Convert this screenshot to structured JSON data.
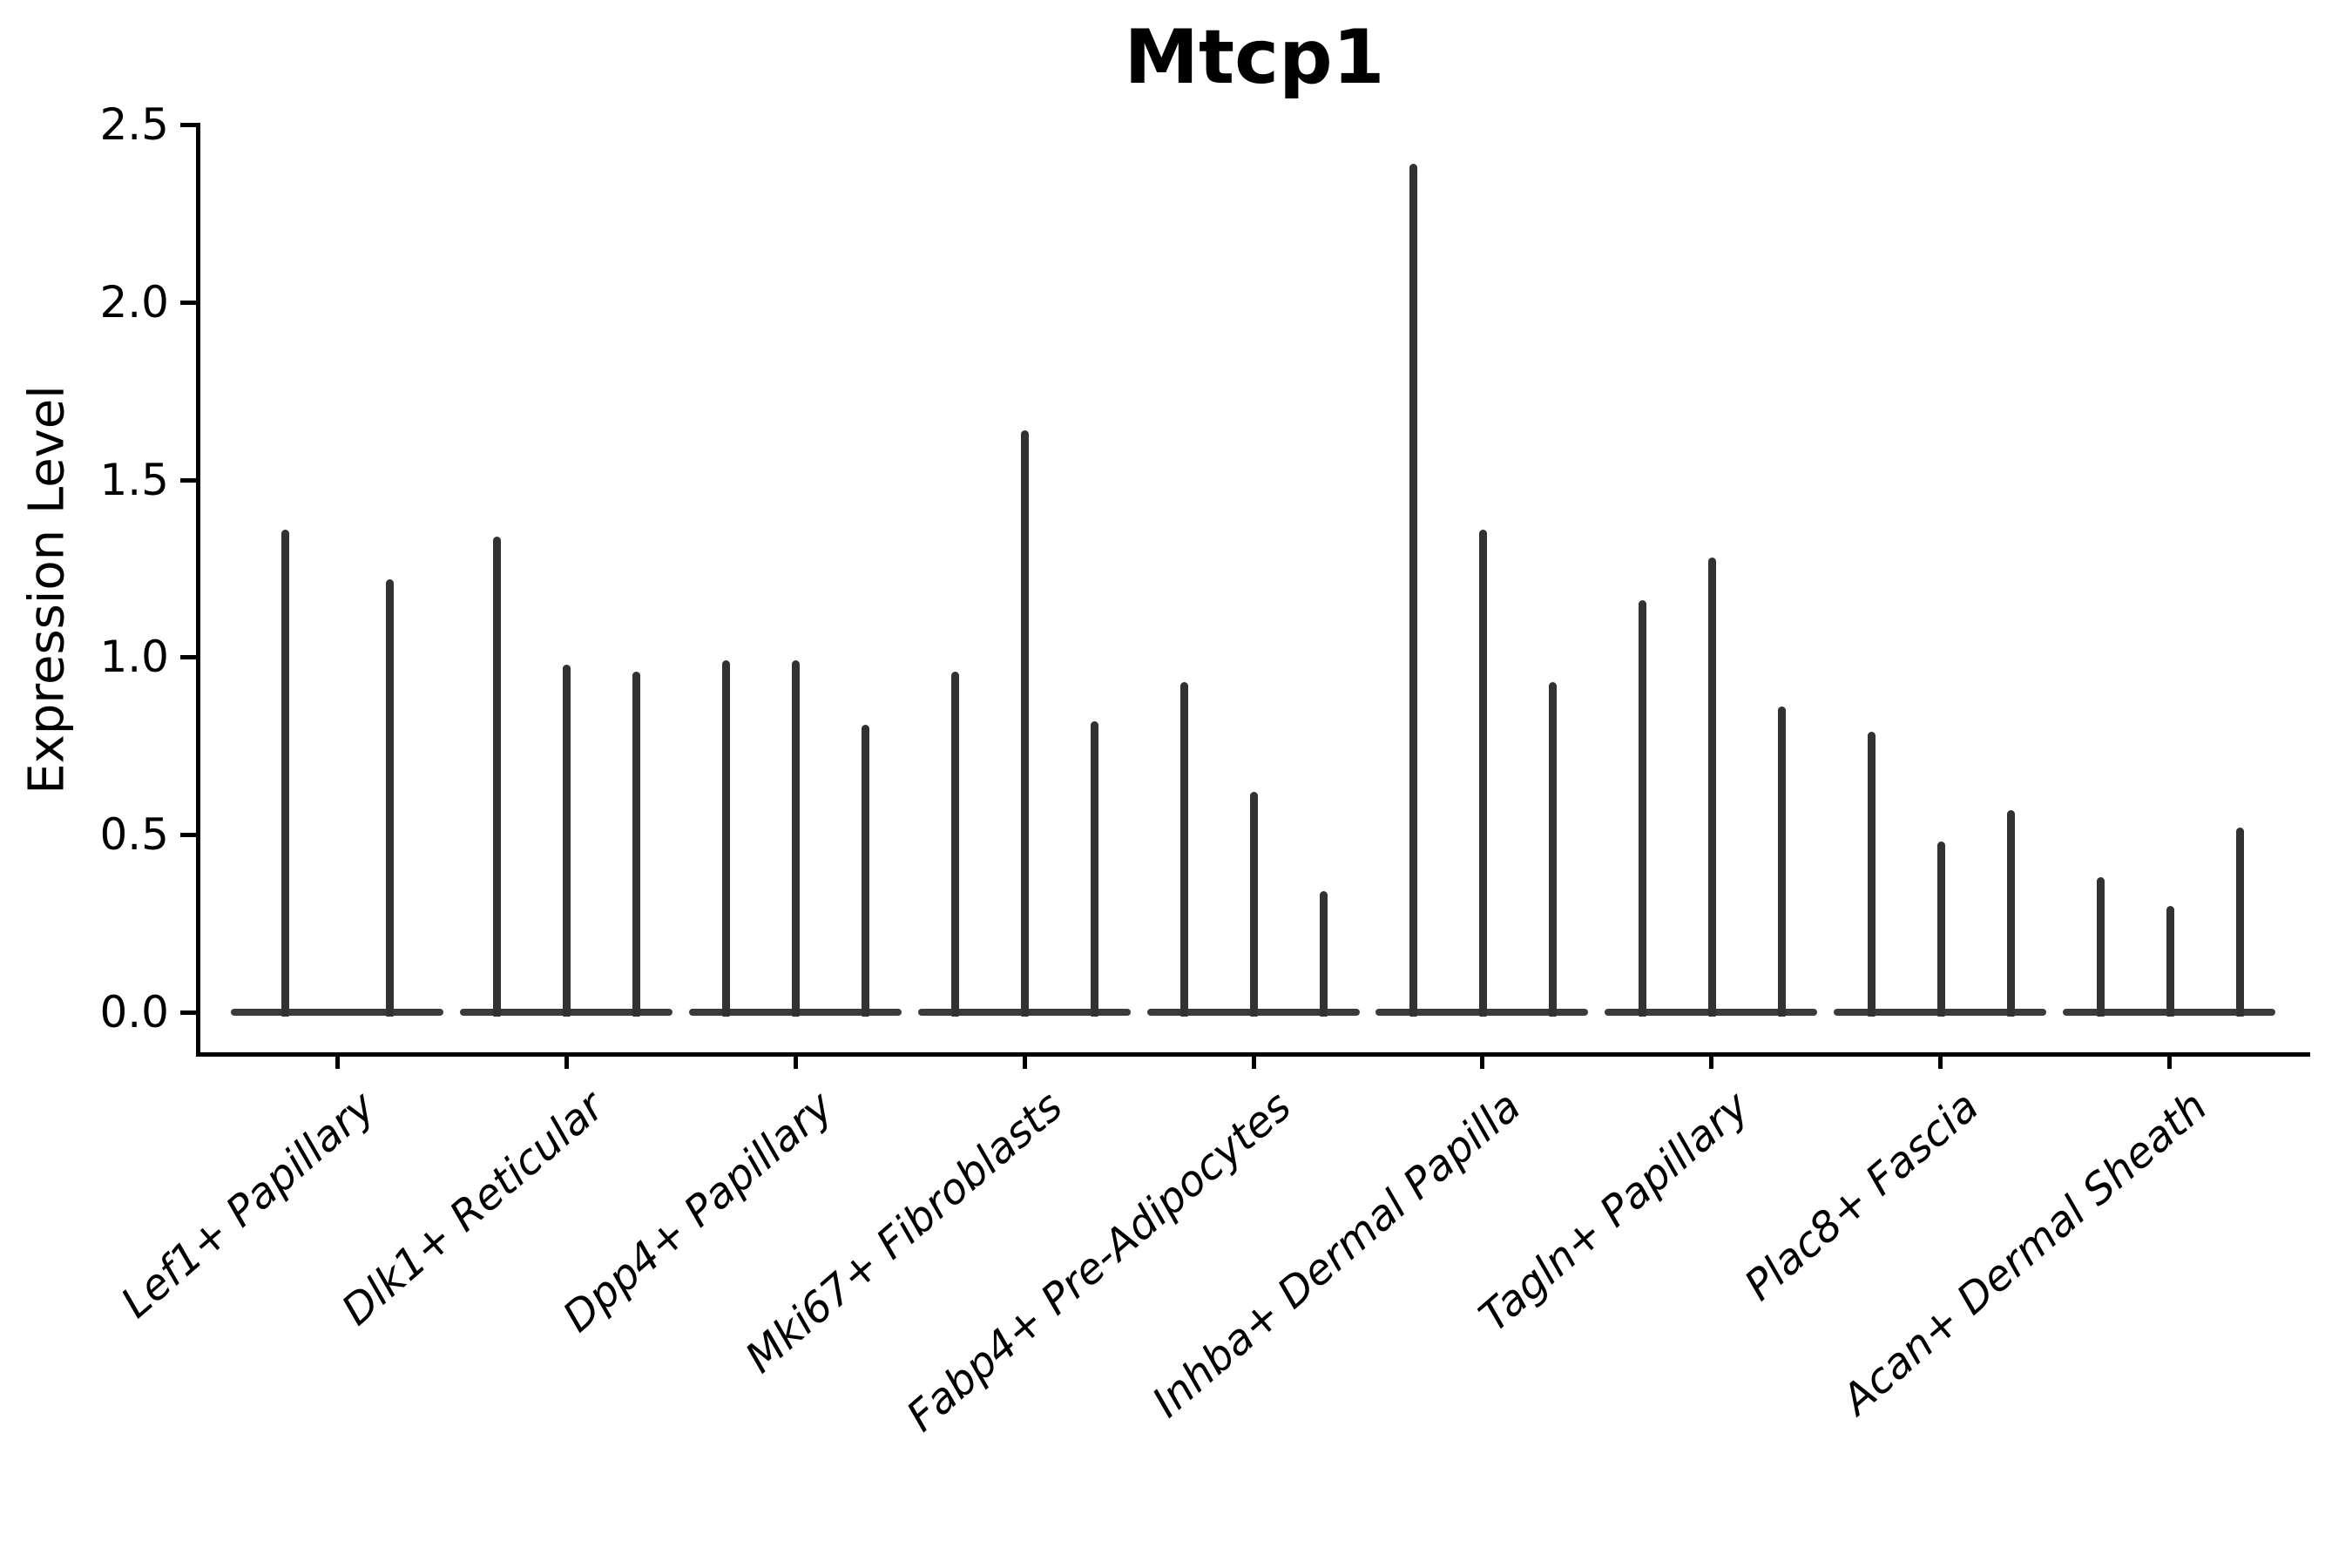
{
  "title": "Mtcp1",
  "ylabel": "Expression Level",
  "chart_data": {
    "type": "violin",
    "title": "Mtcp1",
    "xlabel": "",
    "ylabel": "Expression Level",
    "ylim": [
      -0.12,
      2.5
    ],
    "yticks": [
      0.0,
      0.5,
      1.0,
      1.5,
      2.0,
      2.5
    ],
    "grid": false,
    "legend_position": "none",
    "description": "Extremely narrow violins (near-vertical spikes) with flat bases at expression 0, grouped by cell type",
    "categories": [
      "Lef1+ Papillary",
      "Dlk1+ Reticular",
      "Dpp4+ Papillary",
      "Mki67+ Fibroblasts",
      "Fabp4+ Pre-Adipocytes",
      "Inhba+ Dermal Papilla",
      "Tagln+ Papillary",
      "Plac8+ Fascia",
      "Acan+ Dermal Sheath"
    ],
    "series": [
      {
        "category": "Lef1+ Papillary",
        "violin_peaks": [
          1.36,
          1.22
        ]
      },
      {
        "category": "Dlk1+ Reticular",
        "violin_peaks": [
          1.34,
          0.98,
          0.96
        ]
      },
      {
        "category": "Dpp4+ Papillary",
        "violin_peaks": [
          0.99,
          0.99,
          0.81
        ]
      },
      {
        "category": "Mki67+ Fibroblasts",
        "violin_peaks": [
          0.96,
          1.64,
          0.82
        ]
      },
      {
        "category": "Fabp4+ Pre-Adipocytes",
        "violin_peaks": [
          0.93,
          0.62,
          0.34
        ]
      },
      {
        "category": "Inhba+ Dermal Papilla",
        "violin_peaks": [
          2.39,
          1.36,
          0.93
        ]
      },
      {
        "category": "Tagln+ Papillary",
        "violin_peaks": [
          1.16,
          1.28,
          0.86
        ]
      },
      {
        "category": "Plac8+ Fascia",
        "violin_peaks": [
          0.79,
          0.48,
          0.57
        ]
      },
      {
        "category": "Acan+ Dermal Sheath",
        "violin_peaks": [
          0.38,
          0.3,
          0.52
        ]
      }
    ],
    "colors": {
      "violin_spike": "#323232",
      "violin_baseline": "#3b3b3b",
      "axis": "#000000",
      "text": "#000000",
      "background": "#ffffff"
    }
  }
}
